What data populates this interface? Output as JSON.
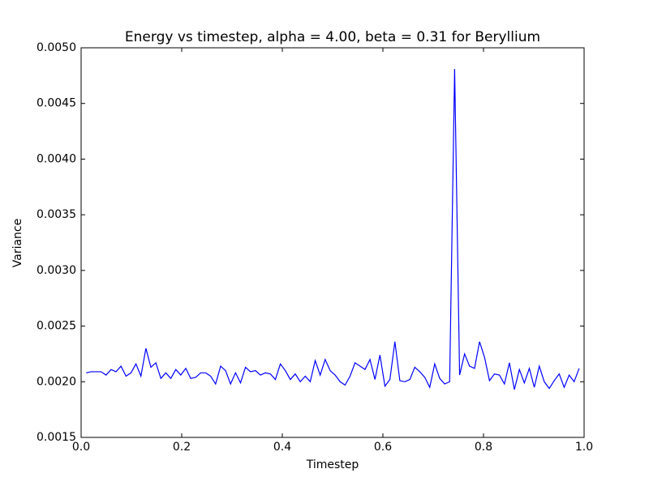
{
  "chart_data": {
    "type": "line",
    "title": "Energy vs timestep, alpha = 4.00, beta = 0.31 for Beryllium",
    "x_label": "Timestep",
    "y_label": "Variance",
    "xlim": [
      0.0,
      1.0
    ],
    "xticks": [
      {
        "value": 0.0,
        "label": "0.0"
      },
      0.2,
      0.4,
      0.6,
      0.8,
      {
        "value": 1.0,
        "label": "1.0"
      }
    ],
    "ylim": [
      0.0015,
      0.005
    ],
    "yticks": [
      0.0015,
      {
        "value": 0.002,
        "label": "0.0020"
      },
      0.0025,
      {
        "value": 0.003,
        "label": "0.0030"
      },
      0.0035,
      {
        "value": 0.004,
        "label": "0.0040"
      },
      0.0045,
      {
        "value": 0.005,
        "label": "0.0050"
      }
    ],
    "x": [
      0.01,
      0.0199,
      0.0298,
      0.0397,
      0.0496,
      0.0595,
      0.0694,
      0.0793,
      0.0892,
      0.0991,
      0.109,
      0.1189,
      0.1288,
      0.1387,
      0.1486,
      0.1585,
      0.1684,
      0.1783,
      0.1882,
      0.1981,
      0.208,
      0.2179,
      0.2278,
      0.2377,
      0.2476,
      0.2575,
      0.2674,
      0.2773,
      0.2872,
      0.2971,
      0.307,
      0.3169,
      0.3268,
      0.3367,
      0.3466,
      0.3565,
      0.3664,
      0.3763,
      0.3862,
      0.3961,
      0.406,
      0.4159,
      0.4258,
      0.4357,
      0.4456,
      0.4555,
      0.4654,
      0.4753,
      0.4852,
      0.4951,
      0.505,
      0.5149,
      0.5248,
      0.5347,
      0.5446,
      0.5545,
      0.5644,
      0.5743,
      0.5842,
      0.5941,
      0.604,
      0.6139,
      0.6238,
      0.6337,
      0.6436,
      0.6535,
      0.6634,
      0.6733,
      0.6832,
      0.6931,
      0.703,
      0.7129,
      0.7228,
      0.7327,
      0.7426,
      0.7525,
      0.7624,
      0.7723,
      0.7822,
      0.7921,
      0.802,
      0.8119,
      0.8218,
      0.8317,
      0.8416,
      0.8515,
      0.8614,
      0.8713,
      0.8812,
      0.8911,
      0.901,
      0.9109,
      0.9208,
      0.9307,
      0.9406,
      0.9505,
      0.9604,
      0.9703,
      0.9802,
      0.9901
    ],
    "series": [
      {
        "color": "#0000ff",
        "values": [
          0.00208,
          0.00209,
          0.00209,
          0.00209,
          0.00206,
          0.00211,
          0.00209,
          0.00214,
          0.00205,
          0.00208,
          0.00216,
          0.00205,
          0.0023,
          0.00213,
          0.00217,
          0.00203,
          0.00208,
          0.00203,
          0.00211,
          0.00206,
          0.00212,
          0.00203,
          0.00204,
          0.00208,
          0.00208,
          0.00205,
          0.00198,
          0.00214,
          0.0021,
          0.00198,
          0.00208,
          0.00199,
          0.00213,
          0.00209,
          0.0021,
          0.00206,
          0.00208,
          0.00207,
          0.00202,
          0.00216,
          0.0021,
          0.00202,
          0.00207,
          0.002,
          0.00205,
          0.002,
          0.00219,
          0.00206,
          0.0022,
          0.0021,
          0.00206,
          0.002,
          0.00197,
          0.00205,
          0.00217,
          0.00214,
          0.00211,
          0.0022,
          0.00202,
          0.00224,
          0.00196,
          0.00202,
          0.00236,
          0.00201,
          0.002,
          0.00202,
          0.00213,
          0.00209,
          0.00204,
          0.00195,
          0.00216,
          0.00203,
          0.00198,
          0.002,
          0.00481,
          0.00206,
          0.00225,
          0.00214,
          0.00212,
          0.00236,
          0.00222,
          0.00201,
          0.00207,
          0.00206,
          0.00198,
          0.00217,
          0.00193,
          0.00211,
          0.00199,
          0.00212,
          0.00195,
          0.00214,
          0.002,
          0.00194,
          0.00201,
          0.00207,
          0.00195,
          0.00206,
          0.002,
          0.00212
        ]
      }
    ]
  }
}
